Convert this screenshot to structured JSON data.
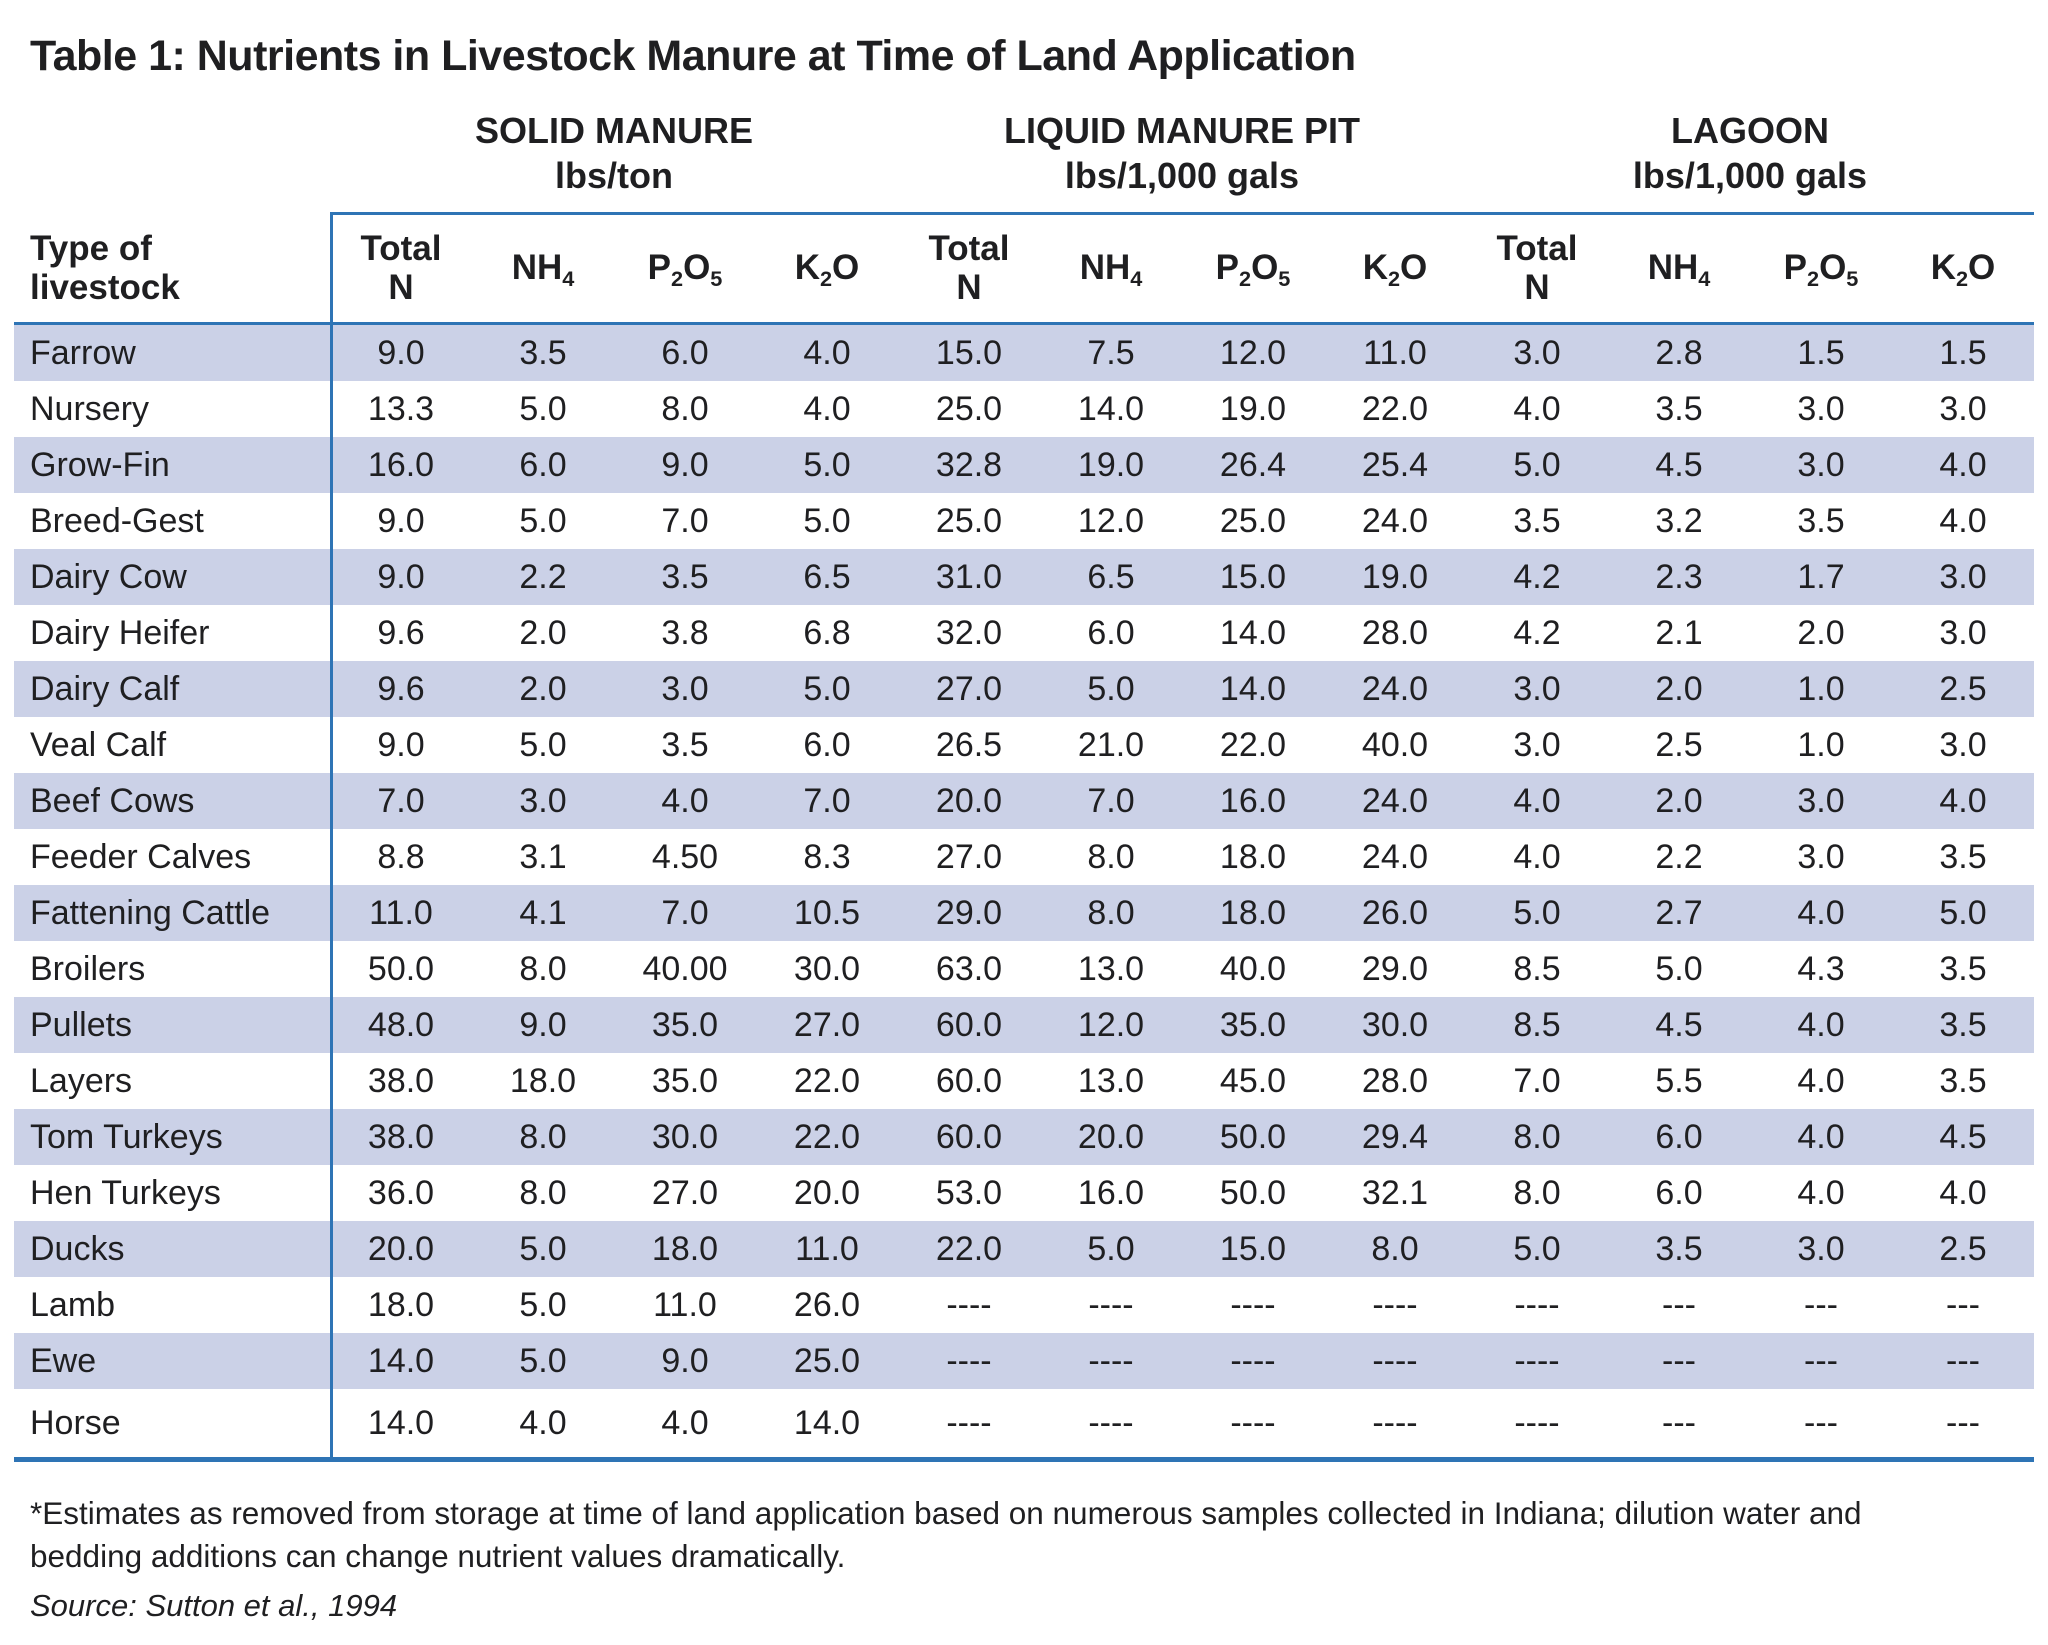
{
  "title": "Table 1: Nutrients in Livestock Manure at Time of Land Application",
  "colors": {
    "stripe": "#cbd1e7",
    "rule": "#2e74b5",
    "text": "#1f1f21"
  },
  "table": {
    "row_header_line1": "Type of",
    "row_header_line2": "livestock",
    "groups": [
      {
        "label": "SOLID MANURE",
        "unit": "lbs/ton"
      },
      {
        "label": "LIQUID MANURE PIT",
        "unit": "lbs/1,000 gals"
      },
      {
        "label": "LAGOON",
        "unit": "lbs/1,000 gals"
      }
    ],
    "nutrient_headers": [
      {
        "id": "total-n",
        "line1": "Total",
        "line2": "N"
      },
      {
        "id": "nh4",
        "parts": [
          {
            "t": "NH"
          },
          {
            "sub": "4"
          }
        ]
      },
      {
        "id": "p2o5",
        "parts": [
          {
            "t": "P"
          },
          {
            "sub": "2"
          },
          {
            "t": "O"
          },
          {
            "sub": "5"
          }
        ]
      },
      {
        "id": "k2o",
        "parts": [
          {
            "t": "K"
          },
          {
            "sub": "2"
          },
          {
            "t": "O"
          }
        ]
      }
    ],
    "rows": [
      {
        "label": "Farrow",
        "values": [
          "9.0",
          "3.5",
          "6.0",
          "4.0",
          "15.0",
          "7.5",
          "12.0",
          "11.0",
          "3.0",
          "2.8",
          "1.5",
          "1.5"
        ]
      },
      {
        "label": "Nursery",
        "values": [
          "13.3",
          "5.0",
          "8.0",
          "4.0",
          "25.0",
          "14.0",
          "19.0",
          "22.0",
          "4.0",
          "3.5",
          "3.0",
          "3.0"
        ]
      },
      {
        "label": "Grow-Fin",
        "values": [
          "16.0",
          "6.0",
          "9.0",
          "5.0",
          "32.8",
          "19.0",
          "26.4",
          "25.4",
          "5.0",
          "4.5",
          "3.0",
          "4.0"
        ]
      },
      {
        "label": "Breed-Gest",
        "values": [
          "9.0",
          "5.0",
          "7.0",
          "5.0",
          "25.0",
          "12.0",
          "25.0",
          "24.0",
          "3.5",
          "3.2",
          "3.5",
          "4.0"
        ]
      },
      {
        "label": "Dairy Cow",
        "values": [
          "9.0",
          "2.2",
          "3.5",
          "6.5",
          "31.0",
          "6.5",
          "15.0",
          "19.0",
          "4.2",
          "2.3",
          "1.7",
          "3.0"
        ]
      },
      {
        "label": "Dairy Heifer",
        "values": [
          "9.6",
          "2.0",
          "3.8",
          "6.8",
          "32.0",
          "6.0",
          "14.0",
          "28.0",
          "4.2",
          "2.1",
          "2.0",
          "3.0"
        ]
      },
      {
        "label": "Dairy Calf",
        "values": [
          "9.6",
          "2.0",
          "3.0",
          "5.0",
          "27.0",
          "5.0",
          "14.0",
          "24.0",
          "3.0",
          "2.0",
          "1.0",
          "2.5"
        ]
      },
      {
        "label": "Veal Calf",
        "values": [
          "9.0",
          "5.0",
          "3.5",
          "6.0",
          "26.5",
          "21.0",
          "22.0",
          "40.0",
          "3.0",
          "2.5",
          "1.0",
          "3.0"
        ]
      },
      {
        "label": "Beef Cows",
        "values": [
          "7.0",
          "3.0",
          "4.0",
          "7.0",
          "20.0",
          "7.0",
          "16.0",
          "24.0",
          "4.0",
          "2.0",
          "3.0",
          "4.0"
        ]
      },
      {
        "label": "Feeder Calves",
        "values": [
          "8.8",
          "3.1",
          "4.50",
          "8.3",
          "27.0",
          "8.0",
          "18.0",
          "24.0",
          "4.0",
          "2.2",
          "3.0",
          "3.5"
        ]
      },
      {
        "label": "Fattening Cattle",
        "values": [
          "11.0",
          "4.1",
          "7.0",
          "10.5",
          "29.0",
          "8.0",
          "18.0",
          "26.0",
          "5.0",
          "2.7",
          "4.0",
          "5.0"
        ]
      },
      {
        "label": "Broilers",
        "values": [
          "50.0",
          "8.0",
          "40.00",
          "30.0",
          "63.0",
          "13.0",
          "40.0",
          "29.0",
          "8.5",
          "5.0",
          "4.3",
          "3.5"
        ]
      },
      {
        "label": "Pullets",
        "values": [
          "48.0",
          "9.0",
          "35.0",
          "27.0",
          "60.0",
          "12.0",
          "35.0",
          "30.0",
          "8.5",
          "4.5",
          "4.0",
          "3.5"
        ]
      },
      {
        "label": "Layers",
        "values": [
          "38.0",
          "18.0",
          "35.0",
          "22.0",
          "60.0",
          "13.0",
          "45.0",
          "28.0",
          "7.0",
          "5.5",
          "4.0",
          "3.5"
        ]
      },
      {
        "label": "Tom Turkeys",
        "values": [
          "38.0",
          "8.0",
          "30.0",
          "22.0",
          "60.0",
          "20.0",
          "50.0",
          "29.4",
          "8.0",
          "6.0",
          "4.0",
          "4.5"
        ]
      },
      {
        "label": "Hen Turkeys",
        "values": [
          "36.0",
          "8.0",
          "27.0",
          "20.0",
          "53.0",
          "16.0",
          "50.0",
          "32.1",
          "8.0",
          "6.0",
          "4.0",
          "4.0"
        ]
      },
      {
        "label": "Ducks",
        "values": [
          "20.0",
          "5.0",
          "18.0",
          "11.0",
          "22.0",
          "5.0",
          "15.0",
          "8.0",
          "5.0",
          "3.5",
          "3.0",
          "2.5"
        ]
      },
      {
        "label": "Lamb",
        "values": [
          "18.0",
          "5.0",
          "11.0",
          "26.0",
          "----",
          "----",
          "----",
          "----",
          "----",
          "---",
          "---",
          "---"
        ]
      },
      {
        "label": "Ewe",
        "values": [
          "14.0",
          "5.0",
          "9.0",
          "25.0",
          "----",
          "----",
          "----",
          "----",
          "----",
          "---",
          "---",
          "---"
        ]
      },
      {
        "label": "Horse",
        "values": [
          "14.0",
          "4.0",
          "4.0",
          "14.0",
          "----",
          "----",
          "----",
          "----",
          "----",
          "---",
          "---",
          "---"
        ]
      }
    ]
  },
  "footnote": "*Estimates as removed from storage at time of land application based on numerous samples collected in Indiana; dilution water and bedding additions can change nutrient values dramatically.",
  "source": "Source: Sutton et al., 1994"
}
